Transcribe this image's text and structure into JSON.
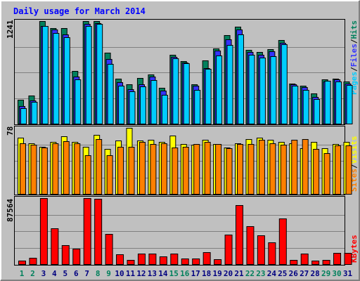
{
  "chart_data": {
    "type": "bar",
    "title": "Daily usage for March 2014",
    "categories": [
      "1",
      "2",
      "3",
      "4",
      "5",
      "6",
      "7",
      "8",
      "9",
      "10",
      "11",
      "12",
      "13",
      "14",
      "15",
      "16",
      "17",
      "18",
      "19",
      "20",
      "21",
      "22",
      "23",
      "24",
      "25",
      "26",
      "27",
      "28",
      "29",
      "30",
      "31"
    ],
    "weekend_days": [
      "1",
      "2",
      "8",
      "9",
      "15",
      "16",
      "22",
      "23",
      "29",
      "30"
    ],
    "panels": {
      "top": {
        "max_label": "1241",
        "ylim": [
          0,
          1241
        ],
        "legend": [
          {
            "name": "Pages",
            "color": "#00CCFF"
          },
          {
            "name": "Files",
            "color": "#3333FF"
          },
          {
            "name": "Hits",
            "color": "#00805C"
          }
        ],
        "series": [
          {
            "name": "Hits",
            "values": [
              290,
              341,
              1241,
              1153,
              1153,
              639,
              1241,
              1241,
              861,
              541,
              479,
              554,
              597,
              437,
              830,
              756,
              479,
              761,
              911,
              1073,
              1177,
              892,
              866,
              900,
              1010,
              488,
              461,
              363,
              537,
              547,
              508
            ]
          },
          {
            "name": "Files",
            "values": [
              215,
              278,
              1180,
              1138,
              1078,
              567,
              1204,
              1214,
              783,
              505,
              420,
              478,
              569,
              400,
              804,
              741,
              456,
              673,
              881,
              1018,
              1136,
              871,
              830,
              878,
              977,
              472,
              440,
              319,
              513,
              534,
              488
            ]
          },
          {
            "name": "Pages",
            "values": [
              190,
              260,
              1180,
              1097,
              1045,
              537,
              1183,
              1208,
              722,
              463,
              387,
              448,
              526,
              352,
              787,
              730,
              405,
              665,
              826,
              953,
              1080,
              836,
              802,
              812,
              958,
              461,
              409,
              301,
              516,
              506,
              465
            ]
          }
        ]
      },
      "middle": {
        "max_label": "78",
        "ylim": [
          0,
          78
        ],
        "legend": [
          {
            "name": "Sites",
            "color": "#FF8000"
          },
          {
            "name": "Visits",
            "color": "#FFFF00"
          }
        ],
        "series": [
          {
            "name": "Visits",
            "values": [
              66,
              60,
              56,
              61,
              68,
              61,
              56,
              70,
              53,
              63,
              78,
              63,
              64,
              61,
              69,
              59,
              58,
              64,
              59,
              55,
              60,
              65,
              66,
              64,
              61,
              60,
              54,
              61,
              54,
              59,
              61
            ]
          },
          {
            "name": "Sites",
            "values": [
              60,
              58,
              55,
              60,
              62,
              60,
              46,
              65,
              46,
              56,
              56,
              61,
              59,
              60,
              55,
              56,
              59,
              61,
              59,
              54,
              59,
              59,
              64,
              60,
              58,
              64,
              65,
              53,
              48,
              57,
              57
            ]
          }
        ]
      },
      "bottom": {
        "max_label": "87564",
        "ylim": [
          0,
          87564
        ],
        "legend": [
          {
            "name": "KBytes",
            "color": "#FF0000"
          }
        ],
        "series": [
          {
            "name": "KBytes",
            "values": [
              4760,
              8540,
              87564,
              47640,
              25500,
              20300,
              87564,
              86280,
              40040,
              13260,
              5320,
              13510,
              14000,
              10600,
              13690,
              7860,
              7430,
              15520,
              6360,
              39210,
              78550,
              50690,
              37990,
              28680,
              60730,
              5560,
              13680,
              5110,
              5950,
              15250,
              15100
            ]
          }
        ]
      }
    }
  },
  "colors": {
    "background": "#C0C0C0",
    "frame_light": "#FFFFFF",
    "frame_dark": "#808080",
    "title": "#0000FF",
    "gridline": "#808080",
    "weekday_label": "#000080",
    "weekend_label": "#00805C",
    "bar_outline": "#000000",
    "axis_label": "#000000"
  }
}
